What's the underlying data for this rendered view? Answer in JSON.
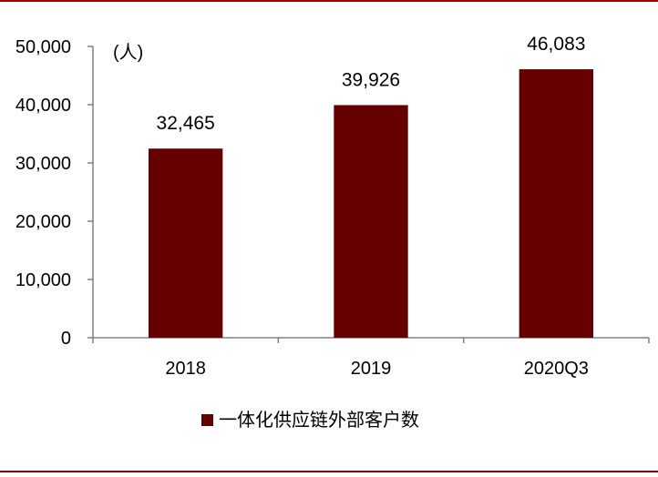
{
  "chart_data": {
    "type": "bar",
    "categories": [
      "2018",
      "2019",
      "2020Q3"
    ],
    "series": [
      {
        "name": "一体化供应链外部客户数",
        "values": [
          32465,
          39926,
          46083
        ],
        "color": "#660000"
      }
    ],
    "data_labels": [
      "32,465",
      "39,926",
      "46,083"
    ],
    "unit_label": "(人)",
    "y_tick_labels": [
      "0",
      "10,000",
      "20,000",
      "30,000",
      "40,000",
      "50,000"
    ],
    "y_ticks": [
      0,
      10000,
      20000,
      30000,
      40000,
      50000
    ],
    "ylim": [
      0,
      50000
    ],
    "grid": false,
    "legend_position": "bottom",
    "border_color": "#990000"
  }
}
